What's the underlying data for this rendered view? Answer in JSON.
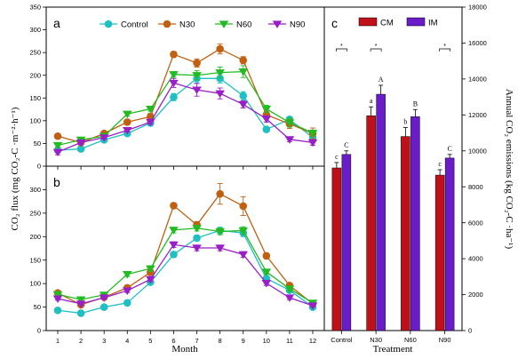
{
  "chart_data": [
    {
      "panel": "a",
      "type": "line",
      "ylabel": "CO₂ flux (mg CO₂-C ·m⁻²·h⁻¹)",
      "ylim": [
        0,
        350
      ],
      "yticks": [
        0,
        50,
        100,
        150,
        200,
        250,
        300,
        350
      ],
      "x": [
        1,
        2,
        3,
        4,
        5,
        6,
        7,
        8,
        9,
        10,
        11,
        12
      ],
      "series": [
        {
          "name": "Control",
          "color": "#1fbfc4",
          "marker": "circle",
          "values": [
            35,
            38,
            58,
            72,
            95,
            152,
            193,
            193,
            155,
            81,
            103,
            63
          ],
          "errors": [
            5,
            4,
            4,
            4,
            5,
            8,
            10,
            10,
            9,
            5,
            6,
            6
          ]
        },
        {
          "name": "N30",
          "color": "#c06010",
          "marker": "circle",
          "values": [
            66,
            52,
            72,
            97,
            109,
            246,
            227,
            258,
            233,
            113,
            93,
            72
          ],
          "errors": [
            5,
            4,
            5,
            6,
            7,
            6,
            9,
            11,
            8,
            8,
            10,
            12
          ]
        },
        {
          "name": "N60",
          "color": "#22bb22",
          "marker": "triangle-down",
          "values": [
            46,
            58,
            66,
            115,
            126,
            202,
            200,
            206,
            208,
            126,
            96,
            73
          ],
          "errors": [
            4,
            4,
            5,
            5,
            5,
            6,
            10,
            12,
            13,
            8,
            10,
            6
          ]
        },
        {
          "name": "N90",
          "color": "#9a1fc8",
          "marker": "triangle-down",
          "values": [
            31,
            52,
            63,
            79,
            97,
            183,
            168,
            160,
            136,
            104,
            59,
            52
          ],
          "errors": [
            6,
            4,
            4,
            4,
            5,
            10,
            14,
            12,
            8,
            7,
            5,
            6
          ]
        }
      ]
    },
    {
      "panel": "b",
      "type": "line",
      "xlabel": "Month",
      "ylim": [
        0,
        350
      ],
      "yticks": [
        0,
        50,
        100,
        150,
        200,
        250,
        300
      ],
      "x": [
        1,
        2,
        3,
        4,
        5,
        6,
        7,
        8,
        9,
        10,
        11,
        12
      ],
      "series": [
        {
          "name": "Control",
          "color": "#1fbfc4",
          "marker": "circle",
          "values": [
            43,
            37,
            50,
            59,
            103,
            162,
            197,
            213,
            208,
            111,
            86,
            50
          ],
          "errors": [
            3,
            3,
            3,
            3,
            4,
            6,
            6,
            7,
            8,
            5,
            4,
            3
          ]
        },
        {
          "name": "N30",
          "color": "#c06010",
          "marker": "circle",
          "values": [
            80,
            55,
            71,
            91,
            124,
            266,
            225,
            291,
            265,
            159,
            96,
            57
          ],
          "errors": [
            4,
            4,
            4,
            5,
            6,
            5,
            7,
            22,
            20,
            6,
            5,
            4
          ]
        },
        {
          "name": "N60",
          "color": "#22bb22",
          "marker": "triangle-down",
          "values": [
            77,
            66,
            76,
            120,
            132,
            214,
            218,
            211,
            213,
            125,
            89,
            59
          ],
          "errors": [
            4,
            3,
            4,
            5,
            6,
            6,
            6,
            7,
            8,
            5,
            5,
            3
          ]
        },
        {
          "name": "N90",
          "color": "#9a1fc8",
          "marker": "triangle-down",
          "values": [
            68,
            57,
            70,
            85,
            109,
            183,
            176,
            176,
            162,
            101,
            70,
            53
          ],
          "errors": [
            3,
            3,
            3,
            4,
            5,
            6,
            6,
            6,
            6,
            5,
            4,
            3
          ]
        }
      ]
    },
    {
      "panel": "c",
      "type": "bar",
      "xlabel": "Treatment",
      "ylabel": "Annual CO₂ emissions (kg CO₂-C ·ha⁻¹)",
      "ylim": [
        0,
        18000
      ],
      "yticks": [
        0,
        2000,
        4000,
        6000,
        8000,
        10000,
        12000,
        14000,
        16000,
        18000
      ],
      "categories": [
        "Control",
        "N30",
        "N60",
        "N90"
      ],
      "series": [
        {
          "name": "CM",
          "color": "#c0101a",
          "values": [
            9050,
            11950,
            10800,
            8650
          ],
          "errors": [
            300,
            500,
            500,
            300
          ],
          "letters": [
            "c",
            "a",
            "b",
            "c"
          ]
        },
        {
          "name": "IM",
          "color": "#6a1cc8",
          "values": [
            9800,
            13150,
            11900,
            9600
          ],
          "errors": [
            200,
            500,
            400,
            200
          ],
          "letters": [
            "C",
            "A",
            "B",
            "C"
          ]
        }
      ],
      "significance": [
        "*",
        "*",
        "",
        "*"
      ]
    }
  ]
}
